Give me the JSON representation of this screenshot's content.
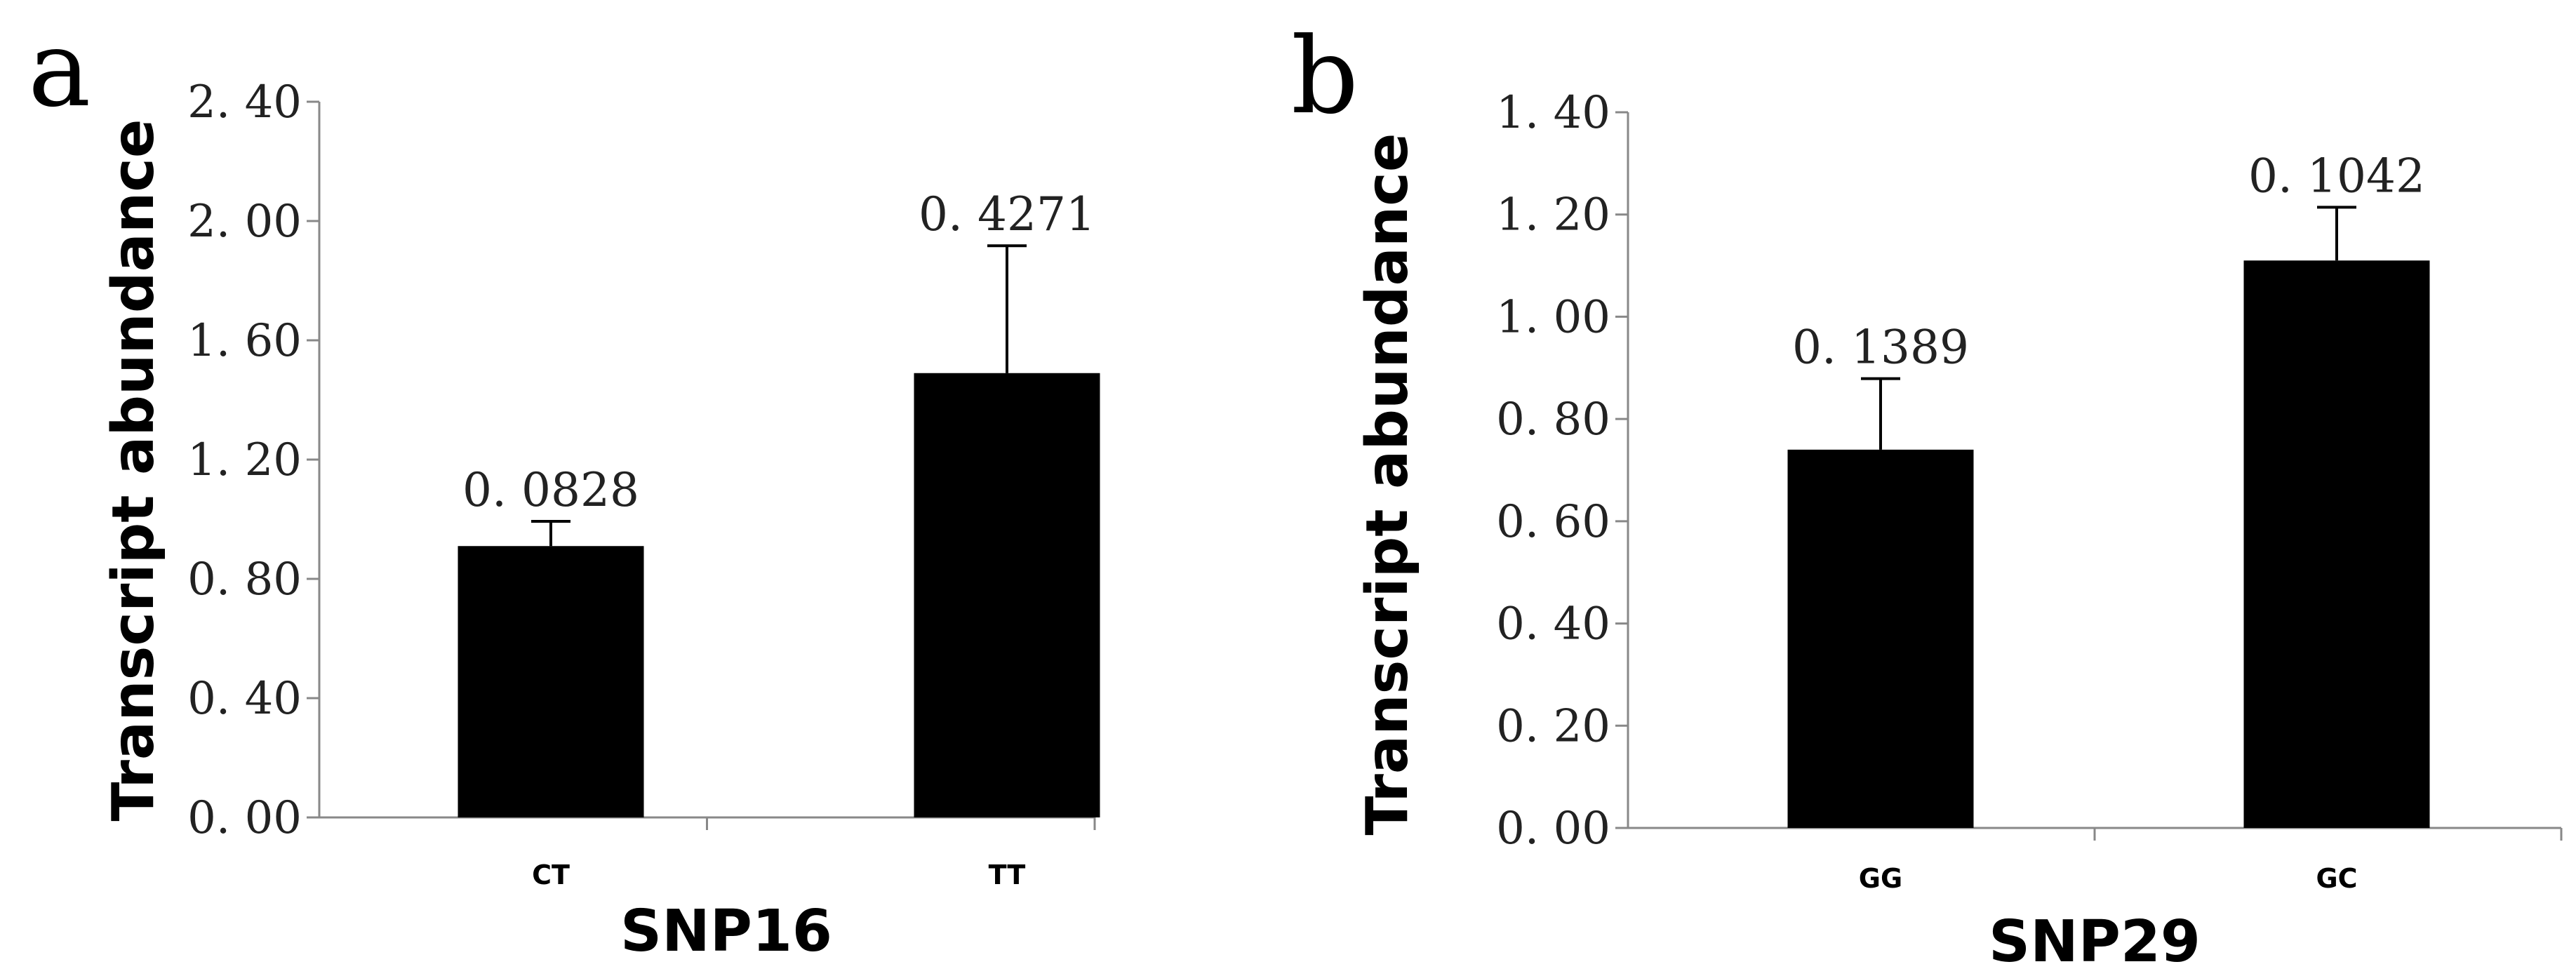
{
  "chart_data": [
    {
      "panel": "a",
      "type": "bar",
      "ylabel": "Transcript abundance",
      "xlabel": "SNP16",
      "ylim": [
        0,
        2.4
      ],
      "yticks": [
        "0. 00",
        "0. 40",
        "0. 80",
        "1. 20",
        "1. 60",
        "2. 00",
        "2. 40"
      ],
      "tick_values": [
        0,
        0.4,
        0.8,
        1.2,
        1.6,
        2.0,
        2.4
      ],
      "categories": [
        "CT",
        "TT"
      ],
      "values": [
        0.91,
        1.49
      ],
      "errors": [
        0.0828,
        0.4271
      ],
      "data_labels": [
        "0. 0828",
        "0. 4271"
      ],
      "bar_color": "#000000"
    },
    {
      "panel": "b",
      "type": "bar",
      "ylabel": "Transcript abundance",
      "xlabel": "SNP29",
      "ylim": [
        0,
        1.4
      ],
      "yticks": [
        "0. 00",
        "0. 20",
        "0. 40",
        "0. 60",
        "0. 80",
        "1. 00",
        "1. 20",
        "1. 40"
      ],
      "tick_values": [
        0,
        0.2,
        0.4,
        0.6,
        0.8,
        1.0,
        1.2,
        1.4
      ],
      "categories": [
        "GG",
        "GC"
      ],
      "values": [
        0.74,
        1.11
      ],
      "errors": [
        0.1389,
        0.1042
      ],
      "data_labels": [
        "0. 1389",
        "0. 1042"
      ],
      "bar_color": "#000000"
    }
  ]
}
